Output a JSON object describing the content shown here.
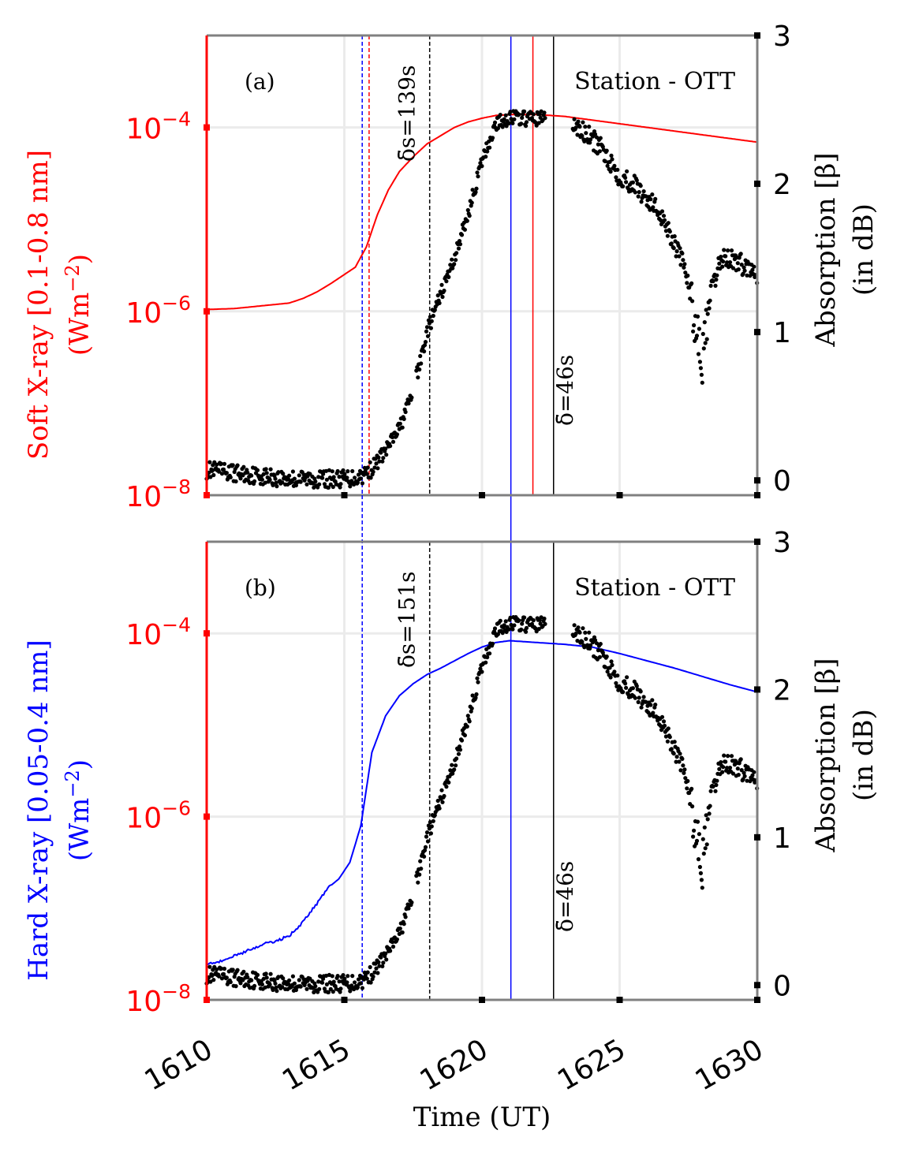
{
  "colors": {
    "soft_xray": "#ff0000",
    "hard_xray": "#0000ff",
    "absorption": "#000000",
    "frame": "#808080",
    "grid": "#ebebeb"
  },
  "chart_data": [
    {
      "type": "line",
      "panel_label": "(a)",
      "station": "Station - OTT",
      "xlabel": "",
      "ylabel": "Soft X-ray [0.1-0.8 nm]",
      "ylabel_units": "(Wm",
      "ylabel_units_exp": "−2",
      "ylabel_units_end": ")",
      "y2label": "Absorption [β]",
      "y2label_units": "(in dB)",
      "xlim": [
        1610,
        1630
      ],
      "ylim_log10": [
        -8,
        -3
      ],
      "y2lim": [
        -0.1,
        3
      ],
      "y_ticks_log10": [
        -8,
        -6,
        -4
      ],
      "y2_ticks": [
        0,
        1,
        2,
        3
      ],
      "x_ticks": [
        1610,
        1615,
        1620,
        1625,
        1630
      ],
      "tick_base": "10",
      "xray_series": {
        "name": "Soft X-ray [0.1-0.8 nm]",
        "x": [
          1610,
          1611,
          1612,
          1613,
          1613.5,
          1614,
          1614.5,
          1615,
          1615.4,
          1615.8,
          1616.2,
          1616.6,
          1617,
          1617.5,
          1618,
          1618.5,
          1619,
          1619.5,
          1620,
          1620.5,
          1621,
          1621.5,
          1622,
          1622.5,
          1623,
          1624,
          1625,
          1626,
          1627,
          1628,
          1629,
          1630
        ],
        "log10_y": [
          -5.98,
          -5.97,
          -5.94,
          -5.91,
          -5.86,
          -5.79,
          -5.7,
          -5.6,
          -5.52,
          -5.3,
          -4.95,
          -4.68,
          -4.48,
          -4.32,
          -4.18,
          -4.09,
          -4.0,
          -3.94,
          -3.9,
          -3.87,
          -3.86,
          -3.86,
          -3.86,
          -3.87,
          -3.88,
          -3.92,
          -3.96,
          -4.0,
          -4.04,
          -4.08,
          -4.12,
          -4.16
        ]
      },
      "absorption_series": {
        "name": "Absorption",
        "x": [
          1610,
          1611,
          1612,
          1613,
          1614,
          1615,
          1615.5,
          1616,
          1616.5,
          1617,
          1617.3,
          1617.7,
          1618,
          1618.3,
          1618.6,
          1619,
          1619.5,
          1620,
          1620.5,
          1621,
          1621.5,
          1622,
          1622.3,
          1623.3,
          1624,
          1624.5,
          1625,
          1625.5,
          1626,
          1626.5,
          1627,
          1627.5,
          1627.8,
          1628,
          1628.3,
          1628.7,
          1629,
          1629.5,
          1630
        ],
        "y": [
          0.07,
          0.05,
          0.03,
          0.01,
          0.01,
          0.01,
          0.02,
          0.08,
          0.2,
          0.35,
          0.5,
          0.75,
          1.0,
          1.15,
          1.3,
          1.5,
          1.8,
          2.15,
          2.4,
          2.45,
          2.44,
          2.44,
          2.45,
          2.4,
          2.3,
          2.2,
          2.05,
          2.0,
          1.9,
          1.8,
          1.6,
          1.35,
          1.0,
          0.8,
          1.25,
          1.5,
          1.5,
          1.45,
          1.4
        ]
      },
      "vlines": [
        {
          "x": 1615.65,
          "color": "#0000ff",
          "style": "dashed"
        },
        {
          "x": 1615.9,
          "color": "#ff0000",
          "style": "dashed"
        },
        {
          "x": 1618.1,
          "color": "#000000",
          "style": "dashed"
        },
        {
          "x": 1621.05,
          "color": "#0000ff",
          "style": "solid",
          "extend_down": true
        },
        {
          "x": 1621.85,
          "color": "#ff0000",
          "style": "solid"
        },
        {
          "x": 1622.6,
          "color": "#000000",
          "style": "solid"
        }
      ],
      "annotations": {
        "delta_s": "δ̄s=139s",
        "delta": "δ̄=46s"
      }
    },
    {
      "type": "line",
      "panel_label": "(b)",
      "station": "Station - OTT",
      "xlabel": "Time (UT)",
      "ylabel": "Hard X-ray [0.05-0.4 nm]",
      "ylabel_units": "(Wm",
      "ylabel_units_exp": "−2",
      "ylabel_units_end": ")",
      "y2label": "Absorption [β]",
      "y2label_units": "(in dB)",
      "xlim": [
        1610,
        1630
      ],
      "ylim_log10": [
        -8,
        -3
      ],
      "y2lim": [
        -0.1,
        3
      ],
      "y_ticks_log10": [
        -8,
        -6,
        -4
      ],
      "y2_ticks": [
        0,
        1,
        2,
        3
      ],
      "x_ticks": [
        1610,
        1615,
        1620,
        1625,
        1630
      ],
      "tick_base": "10",
      "xray_series": {
        "name": "Hard X-ray [0.05-0.4 nm]",
        "x": [
          1610,
          1610.5,
          1611,
          1611.5,
          1612,
          1612.5,
          1613,
          1613.5,
          1614,
          1614.4,
          1614.8,
          1615.2,
          1615.6,
          1616,
          1616.5,
          1617,
          1617.5,
          1618,
          1618.5,
          1619,
          1619.5,
          1620,
          1620.5,
          1621,
          1621.5,
          1622,
          1623,
          1624,
          1625,
          1626,
          1627,
          1628,
          1629,
          1630
        ],
        "log10_y": [
          -7.6,
          -7.58,
          -7.52,
          -7.46,
          -7.4,
          -7.36,
          -7.3,
          -7.15,
          -6.95,
          -6.78,
          -6.68,
          -6.5,
          -6.1,
          -5.3,
          -4.9,
          -4.68,
          -4.55,
          -4.45,
          -4.38,
          -4.3,
          -4.22,
          -4.15,
          -4.1,
          -4.08,
          -4.09,
          -4.1,
          -4.12,
          -4.15,
          -4.22,
          -4.3,
          -4.38,
          -4.47,
          -4.56,
          -4.64
        ]
      },
      "absorption_series": {
        "name": "Absorption",
        "x": [
          1610,
          1611,
          1612,
          1613,
          1614,
          1615,
          1615.5,
          1616,
          1616.5,
          1617,
          1617.3,
          1617.7,
          1618,
          1618.3,
          1618.6,
          1619,
          1619.5,
          1620,
          1620.5,
          1621,
          1621.5,
          1622,
          1622.3,
          1623.3,
          1624,
          1624.5,
          1625,
          1625.5,
          1626,
          1626.5,
          1627,
          1627.5,
          1627.8,
          1628,
          1628.3,
          1628.7,
          1629,
          1629.5,
          1630
        ],
        "y": [
          0.07,
          0.05,
          0.03,
          0.01,
          0.01,
          0.01,
          0.02,
          0.08,
          0.2,
          0.35,
          0.5,
          0.75,
          1.0,
          1.15,
          1.3,
          1.5,
          1.8,
          2.15,
          2.4,
          2.45,
          2.44,
          2.44,
          2.45,
          2.4,
          2.3,
          2.2,
          2.05,
          2.0,
          1.9,
          1.8,
          1.6,
          1.35,
          1.0,
          0.8,
          1.25,
          1.5,
          1.5,
          1.45,
          1.4
        ]
      },
      "vlines": [
        {
          "x": 1615.65,
          "color": "#0000ff",
          "style": "dashed",
          "extend_up": true
        },
        {
          "x": 1618.1,
          "color": "#000000",
          "style": "dashed"
        },
        {
          "x": 1621.05,
          "color": "#0000ff",
          "style": "solid"
        },
        {
          "x": 1622.6,
          "color": "#000000",
          "style": "solid"
        }
      ],
      "annotations": {
        "delta_s": "δ̄s=151s",
        "delta": "δ̄=46s"
      }
    }
  ]
}
